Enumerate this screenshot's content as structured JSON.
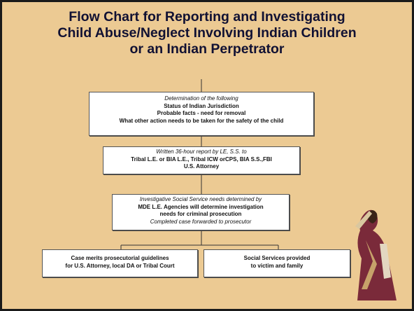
{
  "title": [
    "Flow Chart for Reporting and Investigating",
    "Child Abuse/Neglect Involving Indian Children",
    "or an Indian Perpetrator"
  ],
  "nodes": [
    {
      "lines": [
        "Determination of the following",
        "Status of Indian Jurisdiction",
        "Probable facts - need for removal",
        "What other action needs to be taken for the safety of the child"
      ]
    },
    {
      "lines": [
        "Written 36-hour report by LE, S.S. to",
        "Tribal L.E. or BIA L.E., Tribal ICW orCPS, BIA S.S.,FBI",
        "U.S. Attorney"
      ]
    },
    {
      "lines": [
        "Investigative Social Service needs determined by",
        "MDE L.E. Agencies will determine investigation",
        "needs for criminal prosecution",
        "Completed case forwarded to prosecutor"
      ]
    },
    {
      "lines": [
        "Case merits prosecutorial guidelines",
        "for U.S. Attorney, local DA or Tribal Court"
      ]
    },
    {
      "lines": [
        "Social Services provided",
        "to victim and family"
      ]
    }
  ]
}
